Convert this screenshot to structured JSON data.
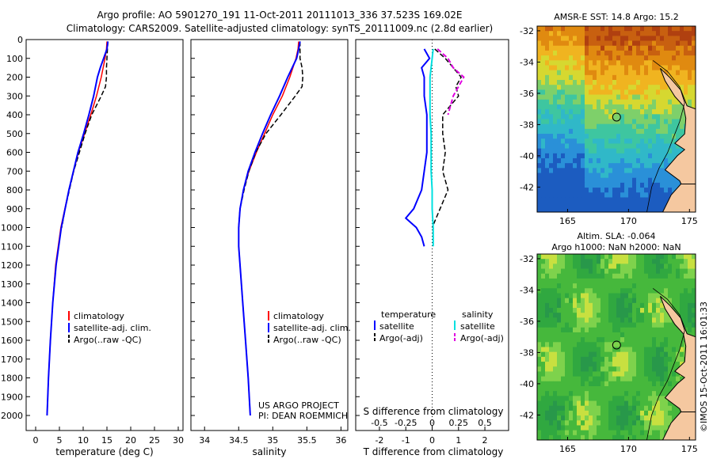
{
  "header": {
    "line1": "Argo profile: AO 5901270_191 11-Oct-2011 20111013_336 37.523S 169.02E",
    "line2": "Climatology: CARS2009. Satellite-adjusted climatology: synTS_20111009.nc (2.8d earlier)"
  },
  "colors": {
    "climatology": "#ff0000",
    "satellite": "#0000ff",
    "argo": "#000000",
    "salinity_satellite": "#00e0e0",
    "salinity_argo": "#e000e0",
    "land": "#f5c8a0"
  },
  "chart_data": [
    {
      "id": "temperature",
      "type": "line",
      "xlabel": "temperature (deg C)",
      "xlim": [
        -2,
        31
      ],
      "xticks": [
        0,
        5,
        10,
        15,
        20,
        25,
        30
      ],
      "ylim": [
        0,
        2080
      ],
      "yticks": [
        0,
        100,
        200,
        300,
        400,
        500,
        600,
        700,
        800,
        900,
        1000,
        1100,
        1200,
        1300,
        1400,
        1500,
        1600,
        1700,
        1800,
        1900,
        2000
      ],
      "legend": [
        "climatology",
        "satellite-adj. clim.",
        "Argo(..raw -QC)"
      ],
      "series": [
        {
          "name": "climatology",
          "depth": [
            10,
            50,
            100,
            150,
            200,
            300,
            400,
            500,
            600,
            800,
            1000,
            1200,
            1400,
            1600,
            1800,
            2000
          ],
          "values": [
            15.0,
            14.9,
            14.6,
            14.2,
            13.8,
            12.8,
            11.6,
            10.3,
            9.0,
            7.0,
            5.3,
            4.2,
            3.6,
            3.1,
            2.7,
            2.4
          ]
        },
        {
          "name": "satellite-adj. clim.",
          "depth": [
            10,
            50,
            100,
            150,
            200,
            300,
            400,
            500,
            600,
            800,
            1000,
            1200,
            1400,
            1600,
            1800,
            2000
          ],
          "values": [
            15.2,
            15.0,
            14.3,
            13.6,
            13.0,
            12.2,
            11.2,
            10.1,
            8.9,
            7.0,
            5.4,
            4.3,
            3.6,
            3.1,
            2.7,
            2.4
          ]
        },
        {
          "name": "Argo(..raw -QC)",
          "depth": [
            10,
            50,
            100,
            150,
            200,
            250,
            300,
            400,
            500,
            600,
            700,
            800,
            900,
            1000
          ],
          "values": [
            15.2,
            15.1,
            15.0,
            14.9,
            14.9,
            14.7,
            13.8,
            11.8,
            10.4,
            9.2,
            8.0,
            7.1,
            6.2,
            5.5
          ]
        }
      ]
    },
    {
      "id": "salinity",
      "type": "line",
      "xlabel": "salinity",
      "xlim": [
        33.8,
        36.1
      ],
      "xticks": [
        34,
        34.5,
        35,
        35.5,
        36
      ],
      "ylim": [
        0,
        2080
      ],
      "legend": [
        "climatology",
        "satellite-adj. clim.",
        "Argo(..raw -QC)"
      ],
      "annotation": [
        "US ARGO PROJECT",
        "PI: DEAN ROEMMICH"
      ],
      "series": [
        {
          "name": "climatology",
          "depth": [
            10,
            50,
            100,
            200,
            300,
            400,
            500,
            600,
            700,
            800,
            900,
            1000,
            1100,
            1200,
            1400,
            1600,
            1800,
            2000
          ],
          "values": [
            35.38,
            35.37,
            35.34,
            35.25,
            35.14,
            35.0,
            34.88,
            34.76,
            34.65,
            34.57,
            34.52,
            34.5,
            34.5,
            34.52,
            34.56,
            34.6,
            34.64,
            34.67
          ]
        },
        {
          "name": "satellite-adj. clim.",
          "depth": [
            10,
            50,
            100,
            200,
            300,
            400,
            500,
            600,
            700,
            800,
            900,
            1000,
            1100,
            1200,
            1400,
            1600,
            1800,
            2000
          ],
          "values": [
            35.4,
            35.38,
            35.35,
            35.22,
            35.1,
            34.97,
            34.85,
            34.74,
            34.64,
            34.57,
            34.52,
            34.5,
            34.5,
            34.52,
            34.56,
            34.6,
            34.64,
            34.67
          ]
        },
        {
          "name": "Argo(..raw -QC)",
          "depth": [
            10,
            50,
            100,
            150,
            200,
            250,
            300,
            400,
            500,
            600,
            700,
            800,
            900,
            1000
          ],
          "values": [
            35.4,
            35.4,
            35.4,
            35.43,
            35.44,
            35.43,
            35.33,
            35.12,
            34.9,
            34.75,
            34.65,
            34.58,
            34.52,
            34.5
          ]
        }
      ]
    },
    {
      "id": "difference",
      "type": "line",
      "xlabel": "T difference from climatology",
      "x2label": "S difference from climatology",
      "xlim": [
        -2.9,
        2.9
      ],
      "xticks": [
        -2,
        -1,
        0,
        1,
        2
      ],
      "x2ticks": [
        "-0.5",
        "-0.25",
        "0",
        "0.25",
        "0.5"
      ],
      "ylim": [
        0,
        2080
      ],
      "legend": {
        "temperature_title": "temperature",
        "salinity_title": "salinity",
        "t_satellite": "satellite",
        "t_argo": "Argo(-adj)",
        "s_satellite": "satellite",
        "s_argo": "Argo(-adj)"
      },
      "series": [
        {
          "name": "temperature satellite",
          "depth": [
            50,
            100,
            150,
            200,
            300,
            400,
            500,
            600,
            700,
            800,
            900,
            950,
            1000,
            1050,
            1100
          ],
          "values": [
            -0.3,
            -0.1,
            -0.4,
            -0.3,
            -0.3,
            -0.2,
            -0.2,
            -0.2,
            -0.3,
            -0.4,
            -0.7,
            -1.0,
            -0.6,
            -0.4,
            -0.3
          ]
        },
        {
          "name": "temperature Argo(-adj)",
          "depth": [
            50,
            100,
            150,
            200,
            250,
            300,
            400,
            500,
            600,
            700,
            800,
            900,
            1000
          ],
          "values": [
            0.1,
            0.5,
            0.8,
            1.1,
            0.9,
            1.0,
            0.4,
            0.4,
            0.5,
            0.4,
            0.6,
            0.3,
            0.0
          ]
        },
        {
          "name": "salinity satellite",
          "depth": [
            50,
            100,
            200,
            300,
            400,
            500,
            600,
            700,
            800,
            900,
            1000,
            1100
          ],
          "values": [
            0.01,
            0.0,
            -0.02,
            -0.02,
            -0.02,
            -0.01,
            -0.01,
            -0.01,
            0.0,
            0.0,
            0.01,
            0.01
          ]
        },
        {
          "name": "salinity Argo(-adj)",
          "depth": [
            50,
            100,
            150,
            200,
            250,
            300,
            400
          ],
          "values": [
            0.05,
            0.15,
            0.2,
            0.3,
            0.25,
            0.2,
            0.15
          ]
        }
      ]
    },
    {
      "id": "sst-map",
      "type": "heatmap",
      "title": "AMSR-E SST: 14.8  Argo: 15.2",
      "xticks": [
        165,
        170,
        175
      ],
      "yticks": [
        -32,
        -34,
        -36,
        -38,
        -40,
        -42
      ],
      "xlim": [
        162.5,
        175.5
      ],
      "ylim": [
        -43.6,
        -31.7
      ],
      "marker": {
        "lon": 169.02,
        "lat": -37.523
      }
    },
    {
      "id": "sla-map",
      "type": "heatmap",
      "title_line1": "Altim. SLA: -0.064",
      "title_line2": "Argo h1000: NaN h2000: NaN",
      "xticks": [
        165,
        170,
        175
      ],
      "yticks": [
        -32,
        -34,
        -36,
        -38,
        -40,
        -42
      ],
      "xlim": [
        162.5,
        175.5
      ],
      "ylim": [
        -43.6,
        -31.7
      ],
      "marker": {
        "lon": 169.02,
        "lat": -37.523
      }
    }
  ],
  "footer": {
    "stamp": "©IMOS 15-Oct-2011 16:01:33"
  }
}
